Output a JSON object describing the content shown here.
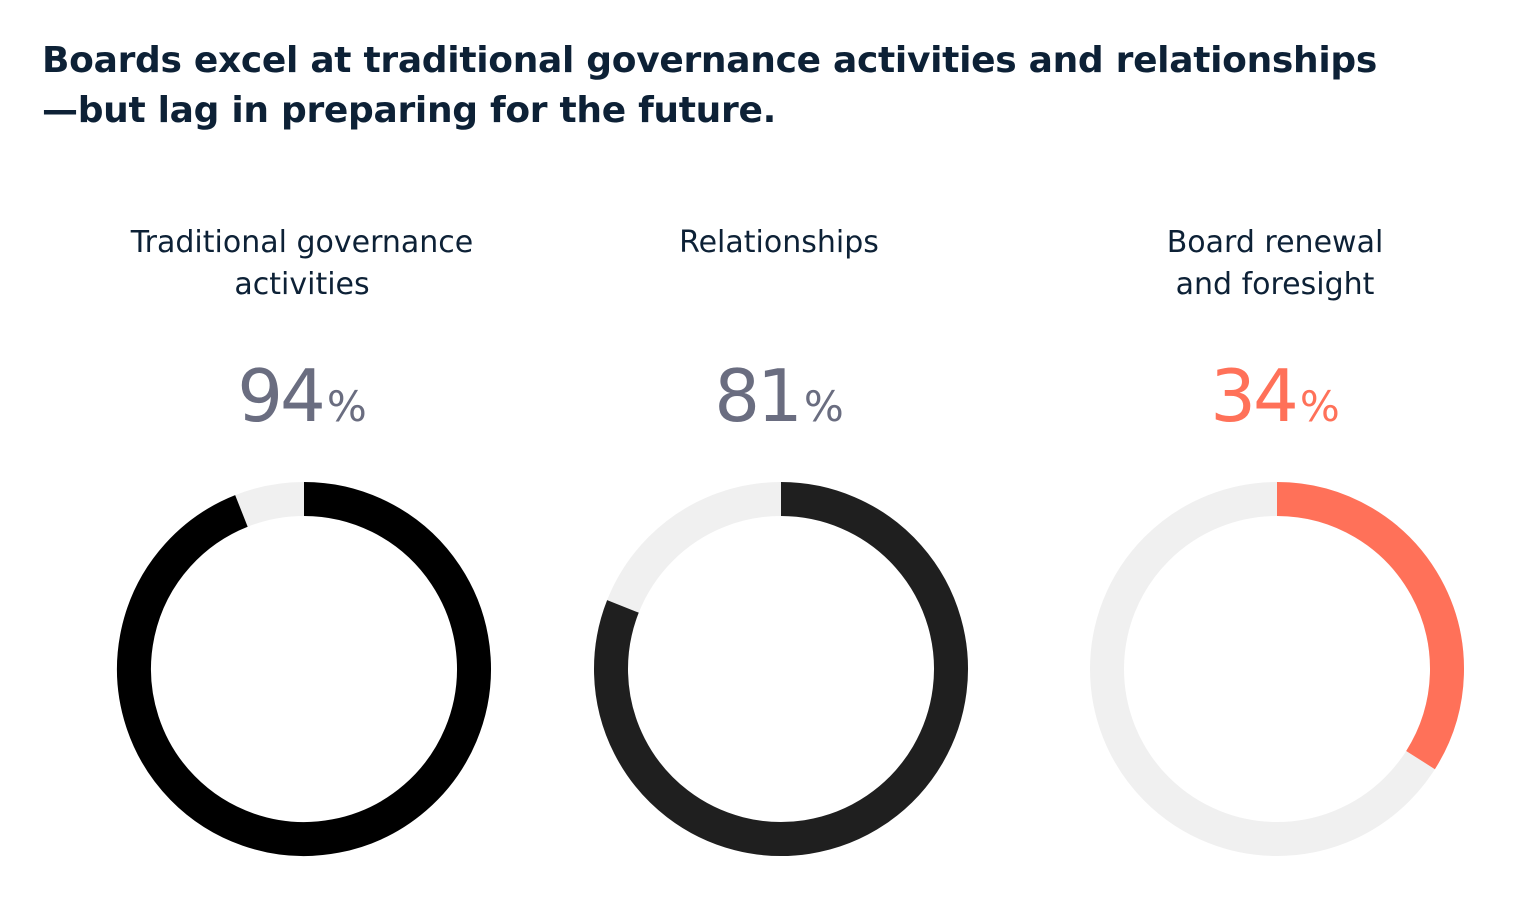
{
  "title": {
    "line1": "Boards excel at traditional governance activities and relationships",
    "line2": "—but lag in preparing for the future."
  },
  "colors": {
    "title_text": "#0d2136",
    "track": "#f0f0f0",
    "default_value_text": "#6a6d80",
    "accent": "#ff7159"
  },
  "chart_data": {
    "type": "pie",
    "variant": "donut",
    "title": "Boards excel at traditional governance activities and relationships—but lag in preparing for the future.",
    "unit": "%",
    "series": [
      {
        "name": "Traditional governance activities",
        "label_lines": [
          "Traditional governance",
          "activities"
        ],
        "value": 94,
        "display": "94",
        "color": "#000000",
        "value_color": "#6a6d80"
      },
      {
        "name": "Relationships",
        "label_lines": [
          "Relationships",
          ""
        ],
        "value": 81,
        "display": "81",
        "color": "#1f1f1f",
        "value_color": "#6a6d80"
      },
      {
        "name": "Board renewal and foresight",
        "label_lines": [
          "Board renewal",
          "and foresight"
        ],
        "value": 34,
        "display": "34",
        "color": "#ff7159",
        "value_color": "#ff7159"
      }
    ]
  }
}
